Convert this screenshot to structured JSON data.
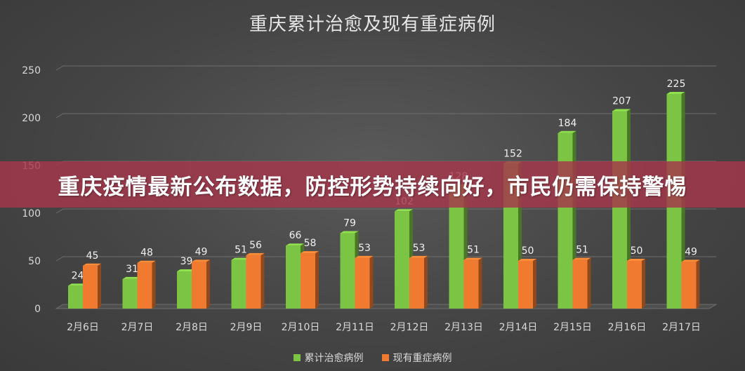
{
  "banner": {
    "headline": "重庆疫情最新公布数据，防控形势持续向好，市民仍需保持警惕",
    "color": "#a5374b"
  },
  "chart_data": {
    "type": "bar",
    "title": "重庆累计治愈及现有重症病例",
    "categories": [
      "2月6日",
      "2月7日",
      "2月8日",
      "2月9日",
      "2月10日",
      "2月11日",
      "2月12日",
      "2月13日",
      "2月14日",
      "2月15日",
      "2月16日",
      "2月17日"
    ],
    "series": [
      {
        "name": "累计治愈病例",
        "color": "#7cc443",
        "values": [
          24,
          31,
          39,
          51,
          66,
          79,
          102,
          128,
          152,
          184,
          207,
          225
        ]
      },
      {
        "name": "现有重症病例",
        "color": "#f07a30",
        "values": [
          45,
          48,
          49,
          56,
          58,
          53,
          53,
          51,
          50,
          51,
          50,
          49
        ]
      }
    ],
    "ylim": [
      0,
      250
    ],
    "yticks": [
      0,
      50,
      100,
      150,
      200,
      250
    ],
    "grid": true,
    "legend": "bottom",
    "style": "3d-column"
  }
}
